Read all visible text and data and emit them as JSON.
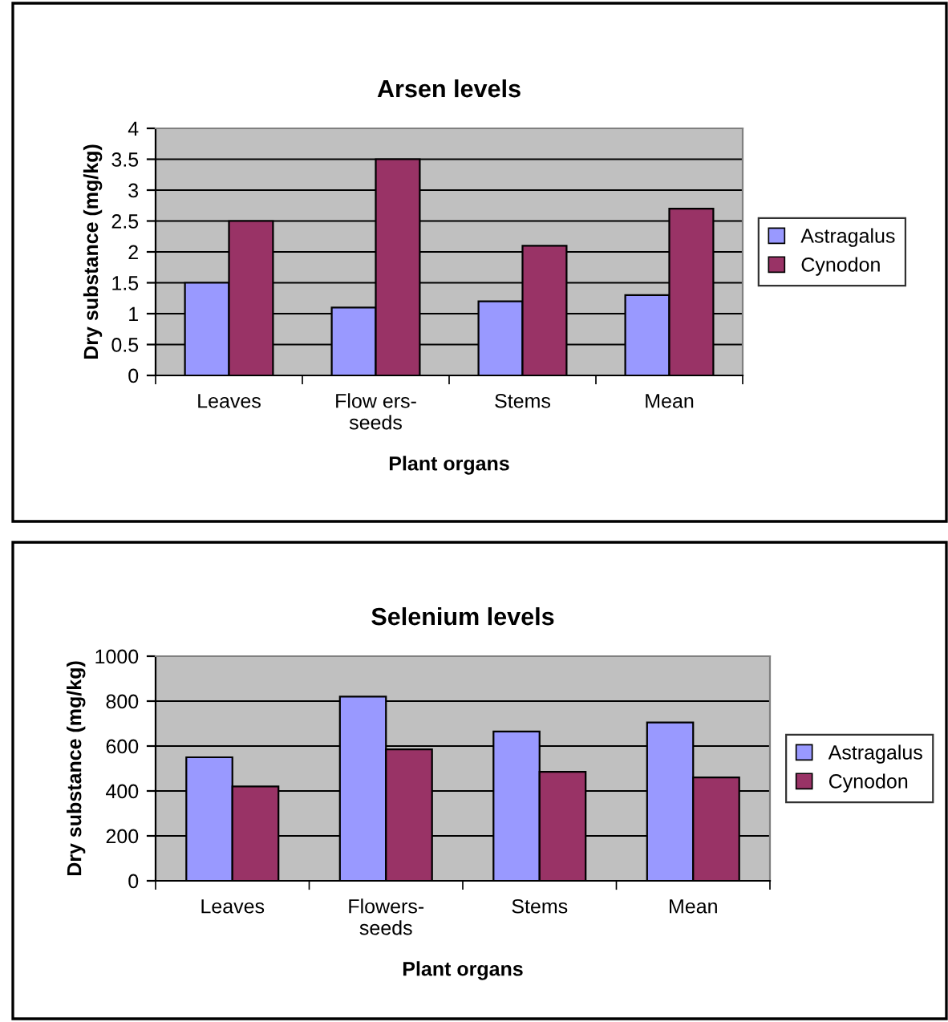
{
  "chart_data": [
    {
      "type": "bar",
      "title": "Arsen levels",
      "xlabel": "Plant organs",
      "ylabel": "Dry substance (mg/kg)",
      "categories": [
        "Leaves",
        "Flow ers-\nseeds",
        "Stems",
        "Mean"
      ],
      "series": [
        {
          "name": "Astragalus",
          "color": "#9999ff",
          "values": [
            1.5,
            1.1,
            1.2,
            1.3
          ]
        },
        {
          "name": "Cynodon",
          "color": "#993366",
          "values": [
            2.5,
            3.5,
            2.1,
            2.7
          ]
        }
      ],
      "ylim": [
        0,
        4
      ],
      "yticks": [
        0,
        0.5,
        1,
        1.5,
        2,
        2.5,
        3,
        3.5,
        4
      ],
      "grid": "y",
      "legend": "right"
    },
    {
      "type": "bar",
      "title": "Selenium levels",
      "xlabel": "Plant organs",
      "ylabel": "Dry substance (mg/kg)",
      "categories": [
        "Leaves",
        "Flowers-\nseeds",
        "Stems",
        "Mean"
      ],
      "series": [
        {
          "name": "Astragalus",
          "color": "#9999ff",
          "values": [
            550,
            820,
            665,
            705
          ]
        },
        {
          "name": "Cynodon",
          "color": "#993366",
          "values": [
            420,
            585,
            485,
            460
          ]
        }
      ],
      "ylim": [
        0,
        1000
      ],
      "yticks": [
        0,
        200,
        400,
        600,
        800,
        1000
      ],
      "grid": "y",
      "legend": "right"
    }
  ]
}
